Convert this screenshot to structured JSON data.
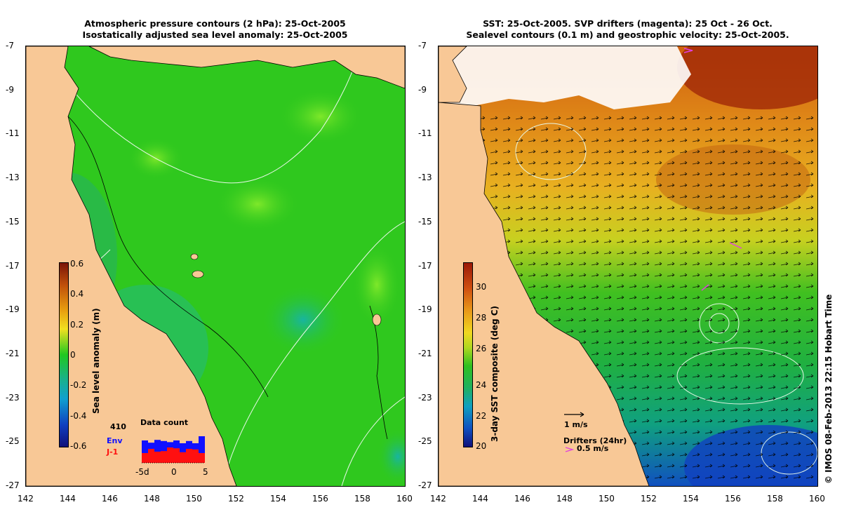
{
  "left": {
    "title1": "Atmospheric pressure contours (2 hPa): 25-Oct-2005",
    "title2": "Isostatically adjusted sea level anomaly: 25-Oct-2005",
    "colorbar_label": "Sea level anomaly (m)",
    "colorbar_ticks": [
      "0.6",
      "0.4",
      "0.2",
      "0",
      "-0.2",
      "-0.4",
      "-0.6"
    ],
    "data_count_title": "Data count",
    "data_count_value": "410",
    "env_label": "Env",
    "j1_label": "J-1",
    "histogram_x_ticks": [
      "-5d",
      "0",
      "5"
    ],
    "histogram_env": [
      0.8,
      0.72,
      0.82,
      0.78,
      0.74,
      0.8,
      0.7,
      0.78,
      0.7,
      0.95
    ],
    "histogram_j1": [
      0.35,
      0.5,
      0.4,
      0.42,
      0.55,
      0.52,
      0.38,
      0.5,
      0.48,
      0.35
    ],
    "colors": {
      "ocean": "#2fc81e",
      "land": "#f8c896"
    }
  },
  "right": {
    "title1": "SST: 25-Oct-2005. SVP drifters (magenta): 25 Oct - 26 Oct.",
    "title2": "Sealevel contours (0.1 m) and geostrophic velocity: 25-Oct-2005.",
    "colorbar_label": "3-day SST composite (deg C)",
    "colorbar_ticks": [
      "30",
      "28",
      "26",
      "24",
      "22",
      "20"
    ],
    "vector_scale_label": "1 m/s",
    "drifters_label": "Drifters (24hr)",
    "drifter_speed_label": "0.5 m/s",
    "colors": {
      "ocean": "#2fc81e",
      "land": "#f8c896",
      "drifter": "#e040e0"
    }
  },
  "axes": {
    "lat_ticks": [
      "-7",
      "-9",
      "-11",
      "-13",
      "-15",
      "-17",
      "-19",
      "-21",
      "-23",
      "-25",
      "-27"
    ],
    "lon_ticks": [
      "142",
      "144",
      "146",
      "148",
      "150",
      "152",
      "154",
      "156",
      "158",
      "160"
    ]
  },
  "credit": "© IMOS 08-Feb-2013 22:15 Hobart Time"
}
